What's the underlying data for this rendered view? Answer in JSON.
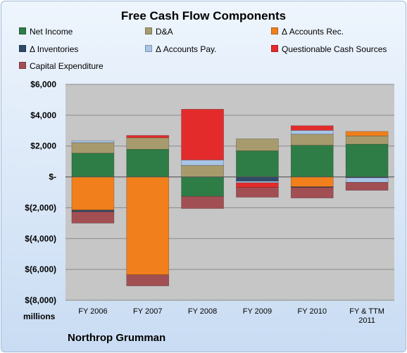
{
  "chart_data": {
    "type": "bar",
    "stacked": true,
    "title": "Free Cash Flow Components",
    "ylabel": "",
    "units_label": "millions",
    "company": "Northrop Grumman",
    "ylim": [
      -8000,
      6000
    ],
    "yticks": [
      6000,
      4000,
      2000,
      0,
      -2000,
      -4000,
      -6000,
      -8000
    ],
    "ytick_labels": [
      "$6,000",
      "$4,000",
      "$2,000",
      "$-",
      "$(2,000)",
      "$(4,000)",
      "$(6,000)",
      "$(8,000)"
    ],
    "grid": true,
    "legend_position": "top",
    "categories": [
      "FY 2006",
      "FY 2007",
      "FY 2008",
      "FY 2009",
      "FY 2010",
      "FY & TTM\n2011"
    ],
    "series": [
      {
        "name": "Net Income",
        "color": "#2e7d46",
        "values": [
          1540,
          1790,
          -1260,
          1690,
          2050,
          2120
        ]
      },
      {
        "name": "D&A",
        "color": "#a79b6d",
        "values": [
          680,
          750,
          750,
          780,
          720,
          540
        ]
      },
      {
        "name": "Δ Accounts Rec.",
        "color": "#f07f1c",
        "values": [
          -2150,
          -6350,
          0,
          0,
          -640,
          290
        ]
      },
      {
        "name": "Δ Inventories",
        "color": "#2f4a66",
        "values": [
          -110,
          0,
          0,
          -280,
          -40,
          -60
        ]
      },
      {
        "name": "Δ Accounts Pay.",
        "color": "#a8c4e6",
        "values": [
          130,
          0,
          350,
          -100,
          250,
          -290
        ]
      },
      {
        "name": "Questionable Cash Sources",
        "color": "#e42b2b",
        "values": [
          0,
          150,
          3290,
          -310,
          300,
          0
        ]
      },
      {
        "name": "Capital Expenditure",
        "color": "#a24f53",
        "values": [
          -740,
          -720,
          -790,
          -630,
          -690,
          -520
        ]
      }
    ]
  }
}
